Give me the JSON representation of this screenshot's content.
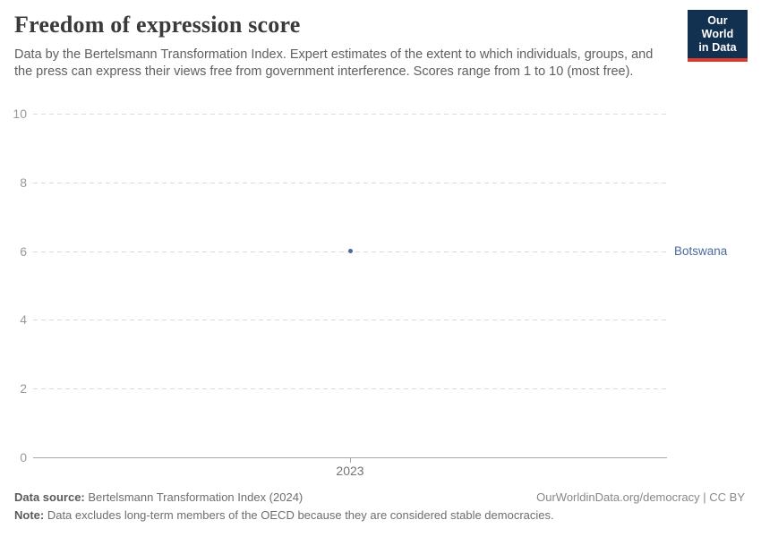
{
  "header": {
    "title": "Freedom of expression score",
    "subtitle": "Data by the Bertelsmann Transformation Index. Expert estimates of the extent to which individuals, groups, and the press can express their views free from government interference. Scores range from 1 to 10 (most free).",
    "logo": {
      "line1": "Our World",
      "line2": "in Data",
      "bg_color": "#12304F",
      "bar_color": "#D93A2B",
      "text_color": "#ffffff"
    }
  },
  "chart_data": {
    "type": "scatter",
    "title": "Freedom of expression score",
    "x": [
      2023
    ],
    "xticks": [
      "2023"
    ],
    "series": [
      {
        "name": "Botswana",
        "values": [
          6
        ],
        "color": "#4c6a9c"
      }
    ],
    "ylim": [
      0,
      10
    ],
    "yticks": [
      0,
      2,
      4,
      6,
      8,
      10
    ],
    "grid": "dashed horizontal gridlines, solid zero axis",
    "legend_position": "entity label right of plot"
  },
  "footer": {
    "data_source_label": "Data source:",
    "data_source_text": " Bertelsmann Transformation Index (2024)",
    "note_label": "Note:",
    "note_text": " Data excludes long-term members of the OECD because they are considered stable democracies.",
    "attribution": "OurWorldinData.org/democracy | CC BY"
  }
}
